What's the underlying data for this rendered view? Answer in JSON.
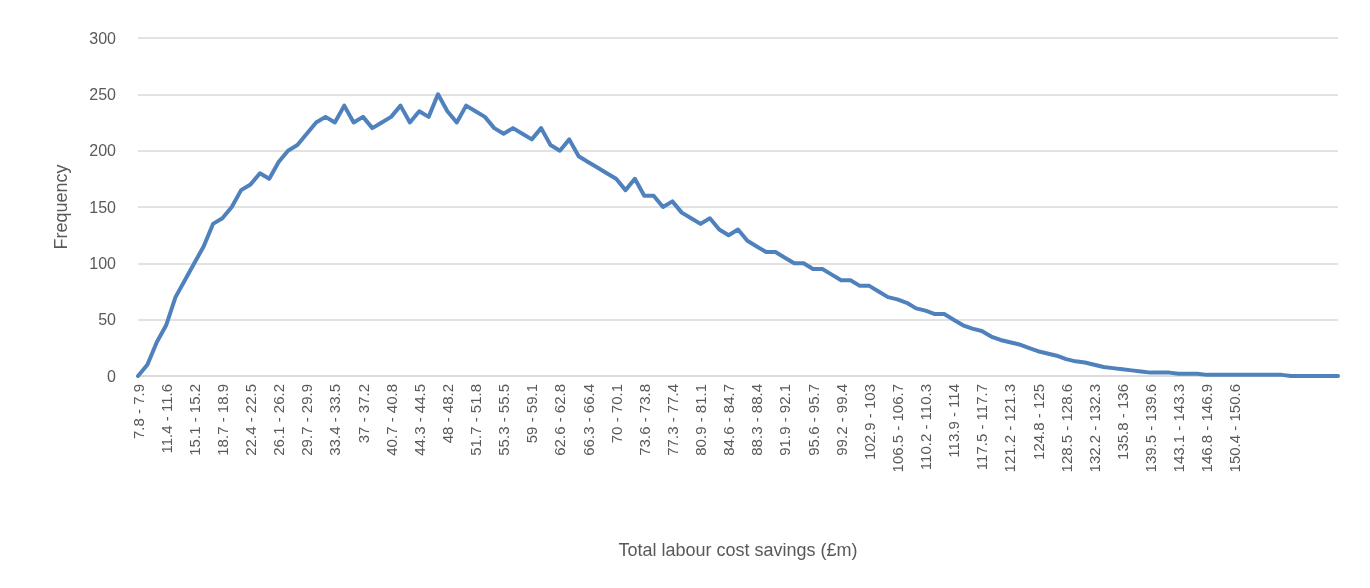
{
  "chart_data": {
    "type": "line",
    "xlabel": "Total labour cost savings (£m)",
    "ylabel": "Frequency",
    "categories": [
      "7.8 - 7.9",
      null,
      null,
      "11.4 - 11.6",
      null,
      null,
      "15.1 - 15.2",
      null,
      null,
      "18.7 - 18.9",
      null,
      null,
      "22.4 - 22.5",
      null,
      null,
      "26.1 - 26.2",
      null,
      null,
      "29.7 - 29.9",
      null,
      null,
      "33.4 - 33.5",
      null,
      null,
      "37 - 37.2",
      null,
      null,
      "40.7 - 40.8",
      null,
      null,
      "44.3 - 44.5",
      null,
      null,
      "48 - 48.2",
      null,
      null,
      "51.7 - 51.8",
      null,
      null,
      "55.3 - 55.5",
      null,
      null,
      "59 - 59.1",
      null,
      null,
      "62.6 - 62.8",
      null,
      null,
      "66.3 - 66.4",
      null,
      null,
      "70 - 70.1",
      null,
      null,
      "73.6 - 73.8",
      null,
      null,
      "77.3 - 77.4",
      null,
      null,
      "80.9 - 81.1",
      null,
      null,
      "84.6 - 84.7",
      null,
      null,
      "88.3 - 88.4",
      null,
      null,
      "91.9 - 92.1",
      null,
      null,
      "95.6 - 95.7",
      null,
      null,
      "99.2 - 99.4",
      null,
      null,
      "102.9 - 103",
      null,
      null,
      "106.5 - 106.7",
      null,
      null,
      "110.2 - 110.3",
      null,
      null,
      "113.9 - 114",
      null,
      null,
      "117.5 - 117.7",
      null,
      null,
      "121.2 - 121.3",
      null,
      null,
      "124.8 - 125",
      null,
      null,
      "128.5 - 128.6",
      null,
      null,
      "132.2 - 132.3",
      null,
      null,
      "135.8 - 136",
      null,
      null,
      "139.5 - 139.6",
      null,
      null,
      "143.1 - 143.3",
      null,
      null,
      "146.8 - 146.9",
      null,
      null,
      "150.4 - 150.6",
      null,
      null,
      null,
      null,
      null,
      null,
      null,
      null,
      null,
      null,
      null
    ],
    "series": [
      {
        "color": "#4f81bd",
        "values": [
          0,
          10,
          30,
          45,
          70,
          85,
          100,
          115,
          135,
          140,
          150,
          165,
          170,
          180,
          175,
          190,
          200,
          205,
          215,
          225,
          230,
          225,
          240,
          225,
          230,
          220,
          225,
          230,
          240,
          225,
          235,
          230,
          250,
          235,
          225,
          240,
          235,
          230,
          220,
          215,
          220,
          215,
          210,
          220,
          205,
          200,
          210,
          195,
          190,
          185,
          180,
          175,
          165,
          175,
          160,
          160,
          150,
          155,
          145,
          140,
          135,
          140,
          130,
          125,
          130,
          120,
          115,
          110,
          110,
          105,
          100,
          100,
          95,
          95,
          90,
          85,
          85,
          80,
          80,
          75,
          70,
          68,
          65,
          60,
          58,
          55,
          55,
          50,
          45,
          42,
          40,
          35,
          32,
          30,
          28,
          25,
          22,
          20,
          18,
          15,
          13,
          12,
          10,
          8,
          7,
          6,
          5,
          4,
          3,
          3,
          3,
          2,
          2,
          2,
          1,
          1,
          1,
          1,
          1,
          1,
          1,
          1,
          1,
          0,
          0,
          0,
          0,
          0,
          0
        ]
      }
    ],
    "ylim": [
      0,
      300
    ],
    "yticks": [
      0,
      50,
      100,
      150,
      200,
      250,
      300
    ],
    "grid": "y",
    "marker": "none",
    "line_style": "solid"
  }
}
